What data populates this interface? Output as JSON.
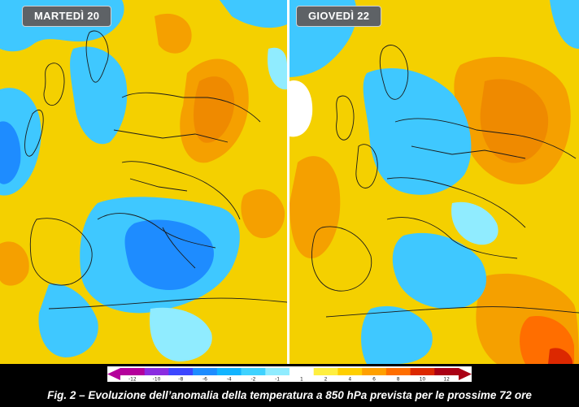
{
  "panels": [
    {
      "label": "MARTEDÌ 20"
    },
    {
      "label": "GIOVEDÌ 22"
    }
  ],
  "colorbar": {
    "ticks": [
      "-12",
      "-10",
      "-8",
      "-6",
      "-4",
      "-2",
      "-1",
      "1",
      "2",
      "4",
      "6",
      "8",
      "10",
      "12"
    ],
    "colors": [
      "#b4009b",
      "#8a2ce0",
      "#3c46ff",
      "#1e8cff",
      "#12b4ff",
      "#3fd2ff",
      "#90ecff",
      "#ffffff",
      "#ffef40",
      "#ffcf00",
      "#ffa000",
      "#ff6e00",
      "#dc2800",
      "#aa0014"
    ]
  },
  "caption": "Fig. 2 – Evoluzione dell’anomalia della temperatura a 850 hPa prevista per le prossime 72 ore"
}
